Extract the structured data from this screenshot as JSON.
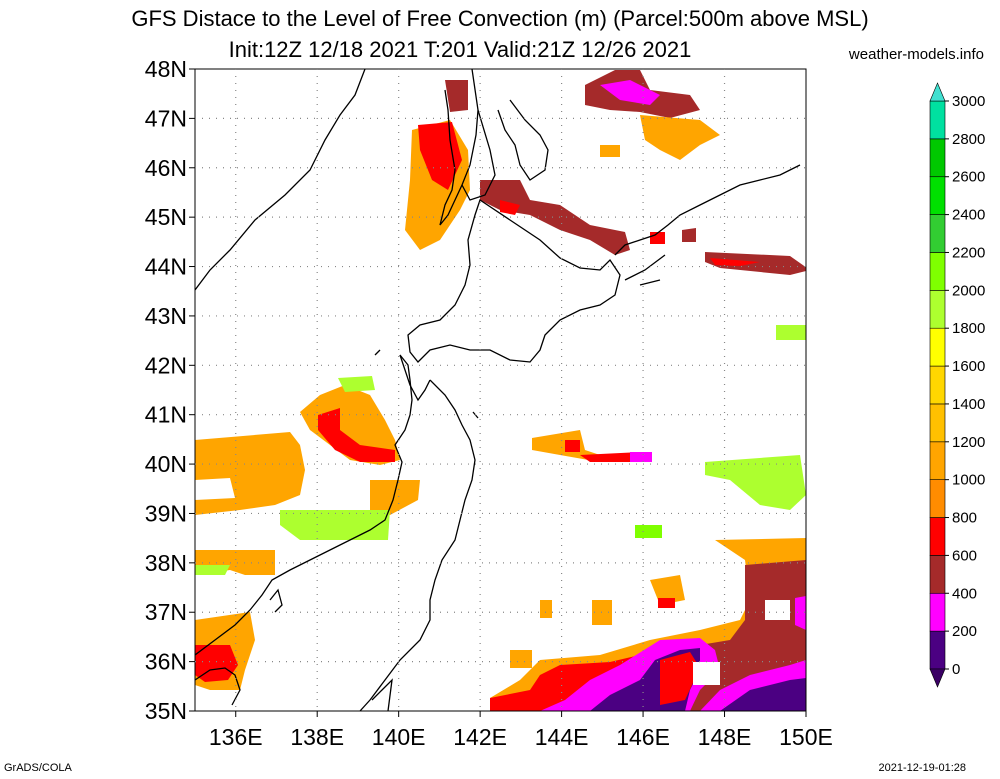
{
  "title_line1": "GFS Distace to the Level of Free Convection (m) (Parcel:500m above MSL)",
  "title_line2": "Init:12Z 12/18 2021 T:201 Valid:21Z 12/26 2021",
  "site": "weather-models.info",
  "footer_left": "GrADS/COLA",
  "footer_right": "2021-12-19-01:28",
  "map": {
    "lon_range": [
      135,
      150
    ],
    "lat_range": [
      35,
      48
    ],
    "lat_labels": [
      "35N",
      "36N",
      "37N",
      "38N",
      "39N",
      "40N",
      "41N",
      "42N",
      "43N",
      "44N",
      "45N",
      "46N",
      "47N",
      "48N"
    ],
    "lon_labels": [
      "136E",
      "138E",
      "140E",
      "142E",
      "144E",
      "146E",
      "148E",
      "150E"
    ],
    "grid": "dotted"
  },
  "colorbar": {
    "labels": [
      "0",
      "200",
      "400",
      "600",
      "800",
      "1000",
      "1200",
      "1400",
      "1600",
      "1800",
      "2000",
      "2200",
      "2400",
      "2600",
      "2800",
      "3000"
    ],
    "colors": [
      "#4b0082",
      "#ff00ff",
      "#a52a2a",
      "#ff0000",
      "#ff8c00",
      "#ffa500",
      "#ffc000",
      "#ffd700",
      "#ffff00",
      "#adff2f",
      "#7fff00",
      "#32cd32",
      "#00e000",
      "#00c800",
      "#00e0a0",
      "#00ffff"
    ],
    "under_color": "#3a0064",
    "over_color": "#40e0d0"
  }
}
